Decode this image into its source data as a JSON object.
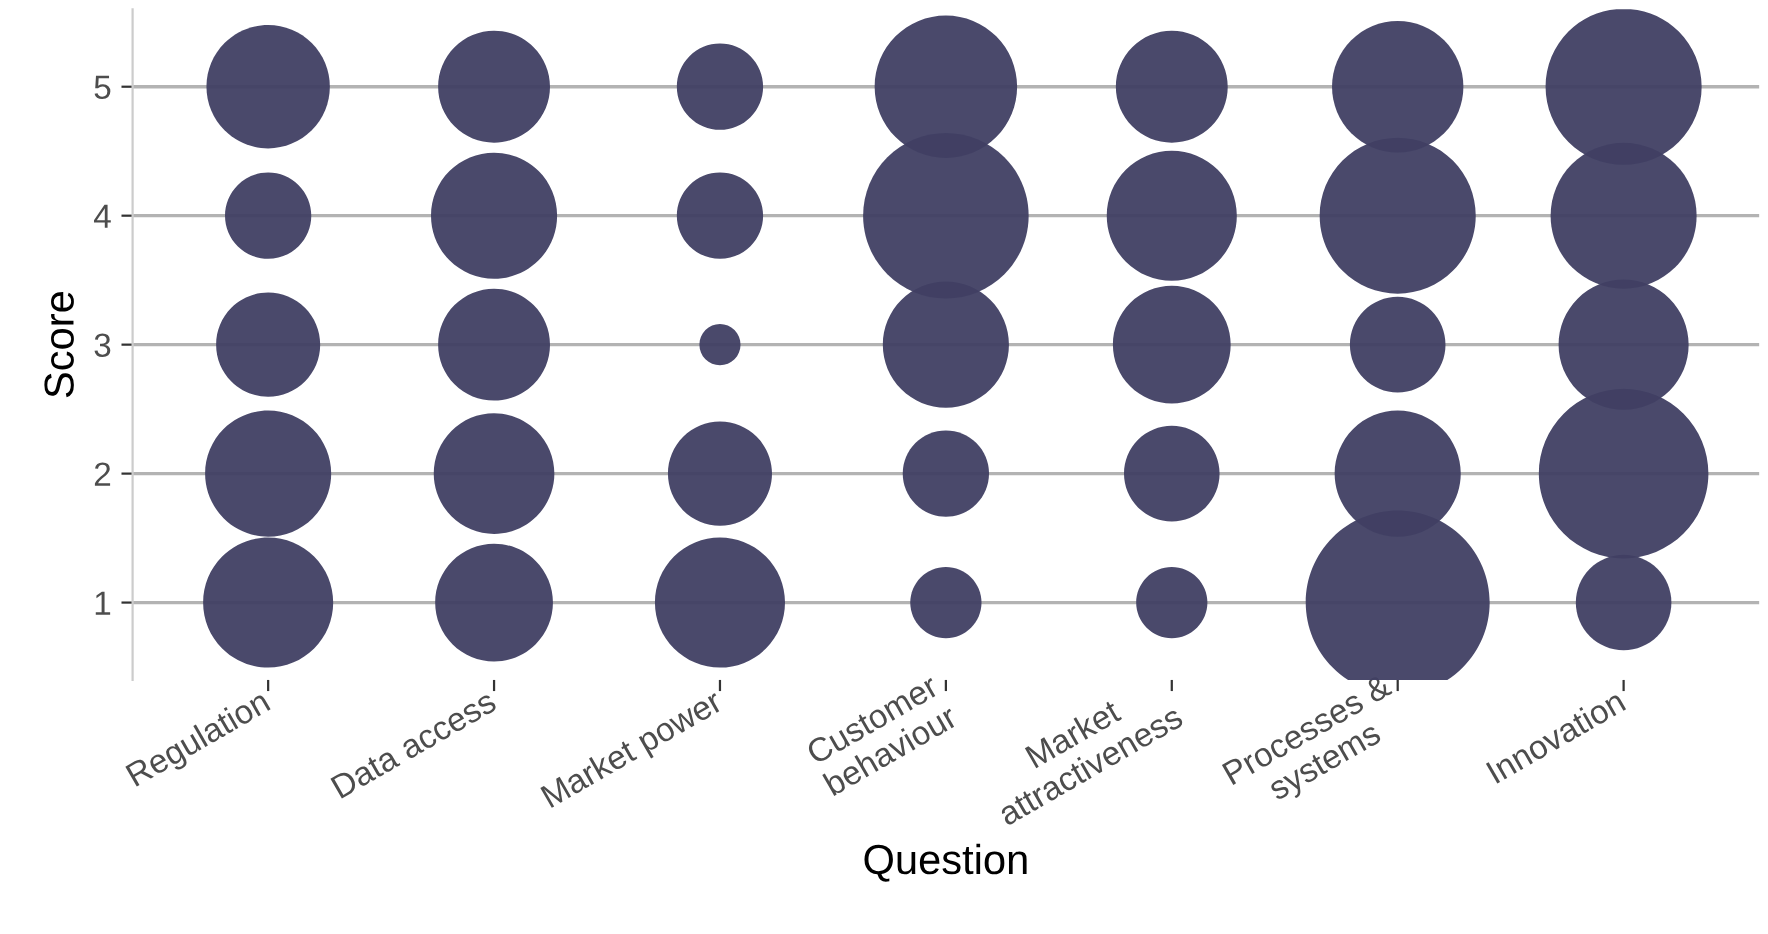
{
  "chart_data": {
    "type": "bubble",
    "xlabel": "Question",
    "ylabel": "Score",
    "categories": [
      "Regulation",
      "Data access",
      "Market power",
      "Customer\nbehaviour",
      "Market\nattractiveness",
      "Processes &\nsystems",
      "Innovation"
    ],
    "series": [
      {
        "color": "#403f63",
        "values": [
          1,
          1,
          1,
          1,
          1,
          1,
          1
        ],
        "sizes": [
          0.5,
          0.41,
          0.5,
          0.15,
          0.15,
          1,
          0.27
        ]
      },
      {
        "color": "#403f63",
        "values": [
          2,
          2,
          2,
          2,
          2,
          2,
          2
        ],
        "sizes": [
          0.47,
          0.43,
          0.32,
          0.22,
          0.27,
          0.47,
          0.85
        ]
      },
      {
        "color": "#403f63",
        "values": [
          3,
          3,
          3,
          3,
          3,
          3,
          3
        ],
        "sizes": [
          0.32,
          0.37,
          0.05,
          0.47,
          0.41,
          0.27,
          0.5
        ]
      },
      {
        "color": "#403f63",
        "values": [
          4,
          4,
          4,
          4,
          4,
          4,
          4
        ],
        "sizes": [
          0.22,
          0.47,
          0.22,
          0.81,
          0.5,
          0.72,
          0.63
        ]
      },
      {
        "color": "#403f63",
        "values": [
          5,
          5,
          5,
          5,
          5,
          5,
          5
        ],
        "sizes": [
          0.45,
          0.37,
          0.22,
          0.6,
          0.37,
          0.51,
          0.72
        ]
      }
    ],
    "ylim": [
      0.4,
      5.6
    ],
    "yticks": [
      1,
      2,
      3,
      4,
      5
    ],
    "grid": "y",
    "legend": false
  }
}
